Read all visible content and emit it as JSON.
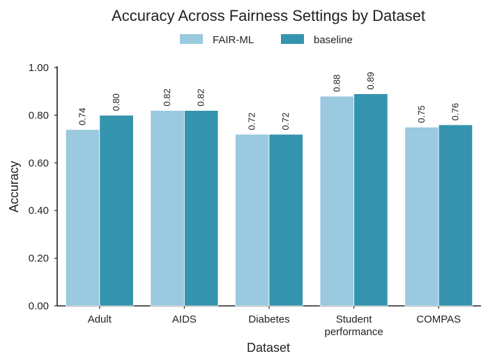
{
  "chart_data": {
    "type": "bar",
    "title": "Accuracy Across Fairness Settings by Dataset",
    "xlabel": "Dataset",
    "ylabel": "Accuracy",
    "ylim": [
      0,
      1.0
    ],
    "yticks": [
      "0.00",
      "0.20",
      "0.40",
      "0.60",
      "0.80",
      "1.00"
    ],
    "categories": [
      [
        "Adult"
      ],
      [
        "AIDS"
      ],
      [
        "Diabetes"
      ],
      [
        "Student",
        "performance"
      ],
      [
        "COMPAS"
      ]
    ],
    "series": [
      {
        "name": "FAIR-ML",
        "color": "#9ac9e0",
        "values": [
          0.74,
          0.82,
          0.72,
          0.88,
          0.75
        ],
        "labels": [
          "0.74",
          "0.82",
          "0.72",
          "0.88",
          "0.75"
        ]
      },
      {
        "name": "baseline",
        "color": "#3494ad",
        "values": [
          0.8,
          0.82,
          0.72,
          0.89,
          0.76
        ],
        "labels": [
          "0.80",
          "0.82",
          "0.72",
          "0.89",
          "0.76"
        ]
      }
    ],
    "legend_position": "top-center",
    "grid": false
  }
}
